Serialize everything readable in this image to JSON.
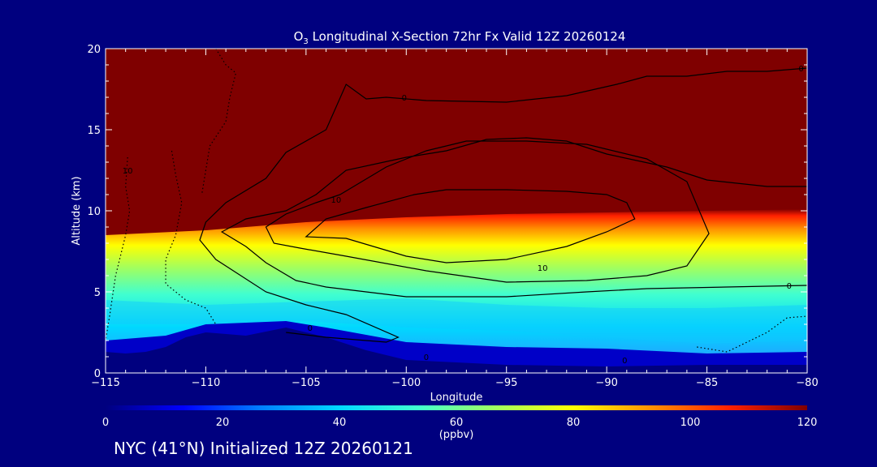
{
  "chart_data": {
    "type": "heatmap",
    "title": "O3 Longitudinal X-Section 72hr  Fx Valid 12Z 20260124",
    "title_main": "O",
    "title_sub": "3",
    "title_rest": " Longitudinal X-Section 72hr  Fx Valid 12Z 20260124",
    "xlabel": "Longitude",
    "ylabel": "Altitude (km)",
    "xlim": [
      -115,
      -80
    ],
    "ylim": [
      0,
      20
    ],
    "x_ticks": [
      -115,
      -110,
      -105,
      -100,
      -95,
      -90,
      -85,
      -80
    ],
    "x_tick_labels": [
      "−115",
      "−110",
      "−105",
      "−100",
      "−95",
      "−90",
      "−85",
      "−80"
    ],
    "y_ticks": [
      0,
      5,
      10,
      15,
      20
    ],
    "y_tick_labels": [
      "0",
      "5",
      "10",
      "15",
      "20"
    ],
    "colorbar": {
      "range": [
        0,
        120
      ],
      "ticks": [
        0,
        20,
        40,
        60,
        80,
        100,
        120
      ],
      "tick_labels": [
        "0",
        "20",
        "40",
        "60",
        "80",
        "100",
        "120"
      ],
      "unit_label": "(ppbv)",
      "colors": [
        "#00007f",
        "#0000ff",
        "#0080ff",
        "#00d8ff",
        "#40ffd0",
        "#a0ff60",
        "#ffff00",
        "#ff9000",
        "#ff2000",
        "#7f0000"
      ]
    },
    "surface_profile": [
      {
        "x": -115,
        "y": 1.3
      },
      {
        "x": -114,
        "y": 1.2
      },
      {
        "x": -113,
        "y": 1.3
      },
      {
        "x": -112,
        "y": 1.6
      },
      {
        "x": -111,
        "y": 2.2
      },
      {
        "x": -110,
        "y": 2.5
      },
      {
        "x": -108,
        "y": 2.3
      },
      {
        "x": -106,
        "y": 2.8
      },
      {
        "x": -104,
        "y": 2.2
      },
      {
        "x": -102,
        "y": 1.4
      },
      {
        "x": -100,
        "y": 0.8
      },
      {
        "x": -95,
        "y": 0.5
      },
      {
        "x": -90,
        "y": 0.4
      },
      {
        "x": -85,
        "y": 0.5
      },
      {
        "x": -80,
        "y": 0.5
      }
    ],
    "tropopause_profile": [
      {
        "x": -115,
        "y": 8.5
      },
      {
        "x": -110,
        "y": 8.8
      },
      {
        "x": -105,
        "y": 9.3
      },
      {
        "x": -100,
        "y": 9.6
      },
      {
        "x": -95,
        "y": 9.8
      },
      {
        "x": -90,
        "y": 9.9
      },
      {
        "x": -85,
        "y": 10.0
      },
      {
        "x": -80,
        "y": 10.1
      }
    ],
    "contours": [
      {
        "label": "0",
        "style": "solid",
        "points": [
          [
            -99.6,
            11.0
          ],
          [
            -98,
            11.3
          ],
          [
            -95,
            11.3
          ],
          [
            -92,
            11.2
          ],
          [
            -90,
            11.0
          ],
          [
            -89,
            10.5
          ],
          [
            -88.6,
            9.5
          ],
          [
            -90,
            8.7
          ],
          [
            -92,
            7.8
          ],
          [
            -95,
            7.0
          ],
          [
            -98,
            6.8
          ],
          [
            -100,
            7.2
          ],
          [
            -103,
            8.3
          ],
          [
            -105,
            8.4
          ],
          [
            -104,
            9.5
          ],
          [
            -102,
            10.2
          ],
          [
            -99.6,
            11.0
          ]
        ]
      },
      {
        "label": "10",
        "style": "solid",
        "points": [
          [
            -103.3,
            11.0
          ],
          [
            -101,
            12.7
          ],
          [
            -99,
            13.7
          ],
          [
            -97,
            14.3
          ],
          [
            -94,
            14.3
          ],
          [
            -91,
            14.1
          ],
          [
            -88,
            13.2
          ],
          [
            -86,
            11.8
          ],
          [
            -84.9,
            8.6
          ],
          [
            -86,
            6.6
          ],
          [
            -88,
            6.0
          ],
          [
            -91,
            5.7
          ],
          [
            -95,
            5.6
          ],
          [
            -99,
            6.3
          ],
          [
            -103,
            7.2
          ],
          [
            -105.3,
            7.7
          ],
          [
            -106.6,
            8.0
          ],
          [
            -107,
            9.0
          ],
          [
            -106,
            9.8
          ],
          [
            -104.5,
            10.5
          ],
          [
            -103.3,
            11.0
          ]
        ]
      },
      {
        "label": "0",
        "style": "solid",
        "points": [
          [
            -80,
            5.4
          ],
          [
            -84,
            5.3
          ],
          [
            -88,
            5.2
          ],
          [
            -91,
            5.0
          ],
          [
            -95,
            4.7
          ],
          [
            -100,
            4.7
          ],
          [
            -104,
            5.3
          ],
          [
            -105.5,
            5.7
          ],
          [
            -107,
            6.8
          ],
          [
            -108,
            7.8
          ],
          [
            -109.2,
            8.7
          ],
          [
            -108,
            9.5
          ],
          [
            -106,
            10.0
          ],
          [
            -104.5,
            11.0
          ],
          [
            -103,
            12.5
          ],
          [
            -100,
            13.3
          ],
          [
            -98,
            13.7
          ],
          [
            -96,
            14.4
          ],
          [
            -94,
            14.5
          ],
          [
            -92,
            14.3
          ],
          [
            -90,
            13.5
          ],
          [
            -87,
            12.7
          ],
          [
            -85,
            11.9
          ],
          [
            -82,
            11.5
          ],
          [
            -80,
            11.5
          ]
        ]
      },
      {
        "label": "0",
        "style": "solid",
        "points": [
          [
            -80,
            18.8
          ],
          [
            -82,
            18.6
          ],
          [
            -84,
            18.6
          ],
          [
            -86,
            18.3
          ],
          [
            -88,
            18.3
          ],
          [
            -89.5,
            17.8
          ],
          [
            -92,
            17.1
          ],
          [
            -95,
            16.7
          ],
          [
            -99,
            16.8
          ],
          [
            -101,
            17.0
          ],
          [
            -102,
            16.9
          ],
          [
            -103,
            17.8
          ],
          [
            -104,
            15.0
          ],
          [
            -106,
            13.6
          ],
          [
            -107,
            12.0
          ],
          [
            -109,
            10.5
          ],
          [
            -110,
            9.3
          ],
          [
            -110.3,
            8.2
          ],
          [
            -109.5,
            7.0
          ],
          [
            -107,
            5.0
          ],
          [
            -105,
            4.2
          ],
          [
            -103,
            3.6
          ],
          [
            -100.4,
            2.2
          ],
          [
            -101,
            1.9
          ],
          [
            -104,
            2.2
          ],
          [
            -106,
            2.5
          ]
        ]
      },
      {
        "label": "10",
        "style": "dotted",
        "points": [
          [
            -113.9,
            13.3
          ],
          [
            -114,
            11.5
          ],
          [
            -113.8,
            10.0
          ],
          [
            -114,
            8.5
          ],
          [
            -114.5,
            6.0
          ],
          [
            -114.8,
            3.5
          ],
          [
            -115,
            2.0
          ]
        ]
      },
      {
        "label": "",
        "style": "dotted",
        "points": [
          [
            -111.7,
            13.7
          ],
          [
            -111.5,
            12.2
          ],
          [
            -111.2,
            10.5
          ],
          [
            -111.5,
            8.5
          ],
          [
            -112,
            7.0
          ],
          [
            -112,
            5.5
          ],
          [
            -111,
            4.5
          ],
          [
            -110,
            4.0
          ],
          [
            -109.5,
            3.0
          ]
        ]
      },
      {
        "label": "",
        "style": "dotted",
        "points": [
          [
            -109.5,
            20
          ],
          [
            -109.0,
            19.0
          ],
          [
            -108.5,
            18.5
          ],
          [
            -108.8,
            17.0
          ],
          [
            -109.0,
            15.5
          ],
          [
            -109.8,
            14.0
          ],
          [
            -110.0,
            12.5
          ],
          [
            -110.2,
            11.0
          ]
        ]
      },
      {
        "label": "",
        "style": "dotted",
        "points": [
          [
            -85.5,
            1.6
          ],
          [
            -84,
            1.3
          ],
          [
            -83,
            1.9
          ],
          [
            -82,
            2.5
          ],
          [
            -81,
            3.4
          ],
          [
            -80,
            3.5
          ]
        ]
      }
    ],
    "inline_labels": [
      {
        "text": "0",
        "x": -100.1,
        "y": 17.0
      },
      {
        "text": "0",
        "x": -80.3,
        "y": 18.8
      },
      {
        "text": "10",
        "x": -103.5,
        "y": 10.7
      },
      {
        "text": "10",
        "x": -93.2,
        "y": 6.5
      },
      {
        "text": "0",
        "x": -104.8,
        "y": 2.8
      },
      {
        "text": "0",
        "x": -80.9,
        "y": 5.4
      },
      {
        "text": "0",
        "x": -99.0,
        "y": 1.0
      },
      {
        "text": "0",
        "x": -89.1,
        "y": 0.8
      },
      {
        "text": "10",
        "x": -113.9,
        "y": 12.5
      }
    ]
  },
  "footer": "NYC (41°N) Initialized 12Z 20260121"
}
